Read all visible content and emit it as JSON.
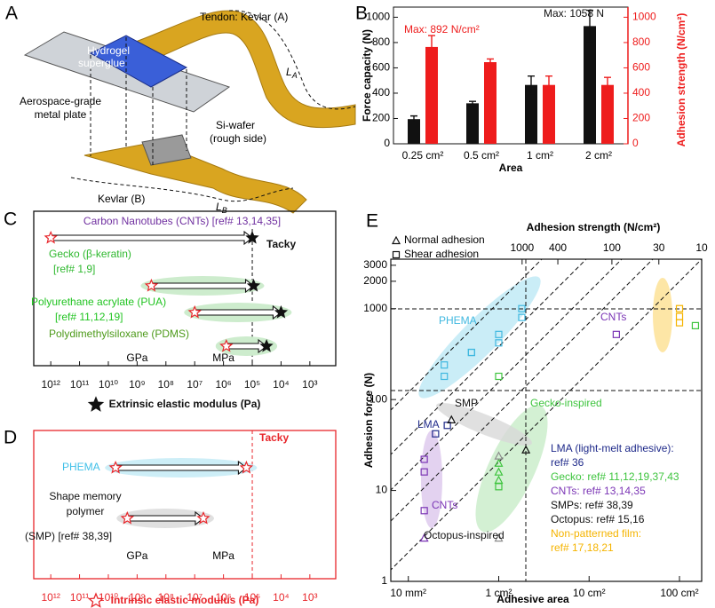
{
  "figure_a": {
    "panel": "A",
    "tendon": "Tendon: Kevlar (A)",
    "la": {
      "symbol": "L",
      "subscript": "A"
    },
    "hydrogel": [
      "Hydrogel",
      "superglue"
    ],
    "plate": [
      "Aerospace-grade",
      "metal plate"
    ],
    "wafer": [
      "Si-wafer",
      "(rough side)"
    ],
    "kevlar_b": "Kevlar (B)",
    "lb": {
      "symbol": "L",
      "subscript": "B"
    }
  },
  "chart_data": [
    {
      "panel": "B",
      "type": "bar",
      "categories": [
        "0.25 cm²",
        "0.5 cm²",
        "1 cm²",
        "2 cm²"
      ],
      "series": [
        {
          "color": "#111111",
          "values": [
            195,
            320,
            465,
            930
          ],
          "errors": [
            25,
            15,
            70,
            125
          ]
        },
        {
          "color": "#ee1c1c",
          "axis": "y2",
          "values": [
            765,
            645,
            465,
            465
          ],
          "errors": [
            90,
            25,
            70,
            60
          ]
        }
      ],
      "ylim": [
        0,
        1080
      ],
      "yticks": [
        0,
        200,
        400,
        600,
        800,
        1000
      ],
      "y2lim": [
        0,
        1080
      ],
      "y2ticks": [
        0,
        200,
        400,
        600,
        800,
        1000
      ],
      "ylabel": "Force capacity (N)",
      "y2label": "Adhesion strength (N/cm²)",
      "xlabel": "Area",
      "y2color": "#ee1c1c",
      "annotations": [
        {
          "text": "Max: 892 N/cm²",
          "color": "#ee1c1c"
        },
        {
          "text": "Max: 1058 N",
          "color": "#111111"
        }
      ]
    },
    {
      "panel": "C",
      "type": "range",
      "log_x": true,
      "xlim": [
        3900000000000.0,
        126
      ],
      "xticks": [
        {
          "value": 1000000000000.0,
          "label": "10¹²"
        },
        {
          "value": 100000000000.0,
          "label": "10¹¹"
        },
        {
          "value": 10000000000.0,
          "label": "10¹⁰"
        },
        {
          "value": 1000000000.0,
          "label": "10⁹"
        },
        {
          "value": 100000000.0,
          "label": "10⁸"
        },
        {
          "value": 10000000.0,
          "label": "10⁷"
        },
        {
          "value": 1000000.0,
          "label": "10⁶"
        },
        {
          "value": 100000.0,
          "label": "10⁵"
        },
        {
          "value": 10000.0,
          "label": "10⁴"
        },
        {
          "value": 1000.0,
          "label": "10³"
        }
      ],
      "unit_marks": [
        {
          "value": 1000000000.0,
          "label": "GPa"
        },
        {
          "value": 1000000.0,
          "label": "MPa"
        }
      ],
      "threshold": {
        "value": 100000.0,
        "label": "Tacky"
      },
      "xlabel": "Extrinsic elastic modulus (Pa)",
      "axis_color": "#111111",
      "end_marker": "filled",
      "series": [
        {
          "name": "Carbon Nanotubes (CNTs)",
          "ref": "[ref# 13,14,35]",
          "color": "#7030a0",
          "range": [
            1000000000000.0,
            100000.0
          ]
        },
        {
          "name": "Gecko (β-keratin)",
          "ref": "[ref# 1,9]",
          "color": "#2eb82e",
          "highlight": "#cdeccd",
          "range": [
            320000000.0,
            90000.0
          ]
        },
        {
          "name": "Polyurethane acrylate (PUA)",
          "ref": "[ref# 11,12,19]",
          "color": "#22c422",
          "highlight": "#cdeccd",
          "range": [
            10000000.0,
            10000.0
          ]
        },
        {
          "name": "Polydimethylsiloxane (PDMS)",
          "color": "#4d9a1a",
          "highlight": "#cdeccd",
          "range": [
            800000.0,
            32000.0
          ]
        }
      ]
    },
    {
      "panel": "D",
      "type": "range",
      "log_x": true,
      "xlim": [
        3900000000000.0,
        126
      ],
      "xticks": [
        {
          "value": 1000000000000.0,
          "label": "10¹²"
        },
        {
          "value": 100000000000.0,
          "label": "10¹¹"
        },
        {
          "value": 10000000000.0,
          "label": "10¹⁰"
        },
        {
          "value": 1000000000.0,
          "label": "10⁹"
        },
        {
          "value": 100000000.0,
          "label": "10⁸"
        },
        {
          "value": 10000000.0,
          "label": "10⁷"
        },
        {
          "value": 1000000.0,
          "label": "10⁶"
        },
        {
          "value": 100000.0,
          "label": "10⁵"
        },
        {
          "value": 10000.0,
          "label": "10⁴"
        },
        {
          "value": 1000.0,
          "label": "10³"
        }
      ],
      "unit_marks": [
        {
          "value": 1000000000.0,
          "label": "GPa"
        },
        {
          "value": 1000000.0,
          "label": "MPa"
        }
      ],
      "threshold": {
        "value": 100000.0,
        "label": "Tacky"
      },
      "xlabel": "Intrinsic elastic modulus (Pa)",
      "axis_color": "#e8262b",
      "end_marker": "hollow",
      "series": [
        {
          "name": "PHEMA",
          "color": "#40c0e8",
          "highlight": "#cdeef7",
          "range": [
            5600000000.0,
            160000.0
          ]
        },
        {
          "name": "Shape memory polymer",
          "ref": "(SMP) [ref# 38,39]",
          "color": "#111111",
          "highlight": "#e0e0e0",
          "range": [
            2200000000.0,
            5000000.0
          ]
        }
      ]
    },
    {
      "panel": "E",
      "type": "scatter",
      "log_x": true,
      "log_y": true,
      "xlim": [
        0.064,
        176
      ],
      "ylim": [
        1,
        3500
      ],
      "xticks": [
        {
          "value": 0.1,
          "label": "10 mm²"
        },
        {
          "value": 1,
          "label": "1 cm²"
        },
        {
          "value": 10,
          "label": "10 cm²"
        },
        {
          "value": 100,
          "label": "100 cm²"
        }
      ],
      "yticks": [
        1,
        10,
        100,
        1000,
        2000,
        3000
      ],
      "x2lim": [
        29000,
        10
      ],
      "x2ticks": [
        1000,
        400,
        100,
        30,
        10
      ],
      "xlabel": "Adhesive area",
      "ylabel": "Adhesion force (N)",
      "x2label": "Adhesion strength (N/cm²)",
      "markers": {
        "normal": "Normal adhesion",
        "shear": "Shear adhesion"
      },
      "series": [
        {
          "name": "LMA (light-melt adhesive):",
          "ref": "ref# 36",
          "color": "#1f2a8a",
          "shear": {
            "x": [
              0.2,
              0.27
            ],
            "y": [
              42,
              52
            ]
          }
        },
        {
          "name": "Gecko:",
          "ref": "ref# 11,12,19,37,43",
          "color": "#3ec43e",
          "shear": {
            "x": [
              1,
              150,
              1
            ],
            "y": [
              180,
              650,
              11
            ]
          },
          "normal": {
            "x": [
              1,
              1,
              1
            ],
            "y": [
              20,
              16,
              13
            ]
          }
        },
        {
          "name": "CNTs:",
          "ref": "ref# 13,14,35",
          "color": "#7b35b5",
          "shear": {
            "x": [
              0.15,
              0.15,
              0.15,
              20
            ],
            "y": [
              22,
              16,
              6,
              520
            ]
          },
          "normal": {
            "x": [
              0.15
            ],
            "y": [
              3
            ]
          }
        },
        {
          "name": "SMPs:",
          "ref": "ref# 38,39",
          "color": "#111111",
          "normal": {
            "x": [
              0.3,
              2
            ],
            "y": [
              60,
              28
            ]
          }
        },
        {
          "name": "Octopus:",
          "ref": "ref# 15,16",
          "color": "#8c8c8c",
          "text_color": "#111111",
          "normal": {
            "x": [
              1,
              1
            ],
            "y": [
              24,
              3
            ]
          }
        },
        {
          "name": "Non-patterned film:",
          "ref": "ref# 17,18,21",
          "color": "#f5b400",
          "shear": {
            "x": [
              100,
              100,
              100
            ],
            "y": [
              1000,
              820,
              700
            ]
          }
        },
        {
          "color": "#40b8e0",
          "shear": {
            "x": [
              0.25,
              0.25,
              0.5,
              0.5,
              1,
              1,
              1.8,
              1.8
            ],
            "y": [
              240,
              180,
              330,
              330,
              420,
              520,
              800,
              1000
            ]
          }
        }
      ],
      "annotations": [
        {
          "text": "PHEMA",
          "color": "#40b8e0"
        },
        {
          "text": "CNTs",
          "color": "#7b35b5"
        },
        {
          "text": "LMA",
          "color": "#1f2a8a"
        },
        {
          "text": "SMP",
          "color": "#111111"
        },
        {
          "text": "Gecko-inspired",
          "color": "#3ec43e"
        },
        {
          "text": "CNTs",
          "color": "#7b35b5"
        },
        {
          "text": "Octopus-inspired",
          "color": "#111111"
        }
      ]
    }
  ]
}
